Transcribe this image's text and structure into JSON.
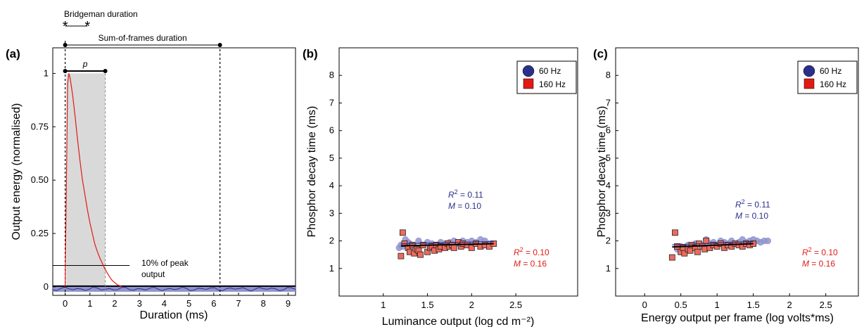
{
  "colors": {
    "blue": "#2b2f8c",
    "blue_fill": "#8f93cc",
    "red": "#e11b12",
    "red_fill": "#f06a5c",
    "shade": "#d9d9d9"
  },
  "chart_data": [
    {
      "panel": "(a)",
      "type": "line",
      "xlabel": "Duration (ms)",
      "ylabel": "Output energy (normalised)",
      "xlim": [
        -0.5,
        9.3
      ],
      "ylim": [
        -0.04,
        1.12
      ],
      "xticks": [
        "0",
        "1",
        "2",
        "3",
        "4",
        "5",
        "6",
        "7",
        "8",
        "9"
      ],
      "yticks": [
        "0",
        "0.25",
        "0.50",
        "0.75",
        "1"
      ],
      "series": [
        {
          "color": "red",
          "x": [
            0,
            0.05,
            0.1,
            0.15,
            0.2,
            0.3,
            0.4,
            0.5,
            0.6,
            0.7,
            0.8,
            0.9,
            1.0,
            1.1,
            1.2,
            1.3,
            1.4,
            1.5,
            1.6,
            1.7,
            1.8,
            1.9,
            2.0,
            2.1,
            2.2,
            2.3
          ],
          "y": [
            0,
            0.5,
            0.95,
            1.0,
            0.98,
            0.9,
            0.8,
            0.69,
            0.59,
            0.5,
            0.43,
            0.36,
            0.3,
            0.25,
            0.2,
            0.165,
            0.135,
            0.11,
            0.085,
            0.065,
            0.045,
            0.03,
            0.02,
            0.01,
            0.005,
            0
          ]
        }
      ],
      "shaded_region": [
        0.05,
        1.62
      ],
      "peak_10pct_level": 0.1,
      "annotations": {
        "bridgeman": {
          "label": "Bridgeman duration",
          "range": [
            0,
            0.9
          ]
        },
        "sum_of_frames": {
          "label": "Sum-of-frames duration",
          "range": [
            0,
            6.25
          ]
        },
        "p": {
          "label": "p",
          "range": [
            0,
            1.62
          ]
        },
        "peak_label_line1": "10% of peak",
        "peak_label_line2": "output"
      }
    },
    {
      "panel": "(b)",
      "type": "scatter",
      "xlabel": "Luminance output (log cd m⁻²)",
      "ylabel": "Phosphor decay time (ms)",
      "xlim": [
        0.5,
        3.2
      ],
      "ylim": [
        0,
        9
      ],
      "xticks": [
        "1",
        "1.5",
        "2",
        "2.5"
      ],
      "yticks": [
        "1",
        "2",
        "3",
        "4",
        "5",
        "6",
        "7",
        "8"
      ],
      "legend": [
        "60 Hz",
        "160 Hz"
      ],
      "legend_position": "top-right",
      "stats": {
        "blue": {
          "r2_label": "R",
          "r2_value": "2",
          "r2_rest": " = 0.11",
          "m_label": "M",
          "m_rest": " = 0.10"
        },
        "red": {
          "r2_label": "R",
          "r2_value": "2",
          "r2_rest": " = 0.10",
          "m_label": "M",
          "m_rest": " = 0.16"
        }
      },
      "series": [
        {
          "name": "60 Hz",
          "marker": "circle",
          "x": [
            1.18,
            1.2,
            1.22,
            1.25,
            1.28,
            1.3,
            1.35,
            1.4,
            1.45,
            1.5,
            1.55,
            1.6,
            1.65,
            1.7,
            1.75,
            1.8,
            1.85,
            1.9,
            1.95,
            2.0,
            2.05,
            2.1,
            2.15,
            2.2
          ],
          "y": [
            1.75,
            1.85,
            1.8,
            2.05,
            1.95,
            1.9,
            1.8,
            2.0,
            1.85,
            1.95,
            1.9,
            1.85,
            1.95,
            1.9,
            1.95,
            2.0,
            1.9,
            2.0,
            1.95,
            2.0,
            1.95,
            2.05,
            2.0,
            1.9
          ]
        },
        {
          "name": "160 Hz",
          "marker": "square",
          "x": [
            1.2,
            1.22,
            1.24,
            1.28,
            1.3,
            1.33,
            1.35,
            1.38,
            1.4,
            1.42,
            1.45,
            1.5,
            1.53,
            1.55,
            1.58,
            1.6,
            1.63,
            1.65,
            1.7,
            1.73,
            1.75,
            1.78,
            1.8,
            1.85,
            1.88,
            1.9,
            1.95,
            2.0,
            2.05,
            2.1,
            2.15,
            2.2,
            2.25
          ],
          "y": [
            1.45,
            2.3,
            1.9,
            1.75,
            1.6,
            1.85,
            1.55,
            1.7,
            1.65,
            1.5,
            1.85,
            1.6,
            1.75,
            1.8,
            1.65,
            1.85,
            1.7,
            1.8,
            1.75,
            1.9,
            1.8,
            1.85,
            1.75,
            1.95,
            1.8,
            1.9,
            1.85,
            1.75,
            1.9,
            1.8,
            1.85,
            1.8,
            1.9
          ]
        }
      ],
      "fit_line": {
        "x": [
          1.2,
          2.25
        ],
        "y": [
          1.82,
          1.9
        ]
      }
    },
    {
      "panel": "(c)",
      "type": "scatter",
      "xlabel": "Energy output per frame (log volts*ms)",
      "ylabel": "Phosphor decay time (ms)",
      "xlim": [
        -0.4,
        2.95
      ],
      "ylim": [
        0,
        9
      ],
      "xticks": [
        "0",
        "0.5",
        "1",
        "1.5",
        "2",
        "2.5"
      ],
      "yticks": [
        "1",
        "2",
        "3",
        "4",
        "5",
        "6",
        "7",
        "8"
      ],
      "legend": [
        "60 Hz",
        "160 Hz"
      ],
      "legend_position": "top-right",
      "stats": {
        "blue": {
          "r2_label": "R",
          "r2_value": "2",
          "r2_rest": " = 0.11",
          "m_label": "M",
          "m_rest": " = 0.10"
        },
        "red": {
          "r2_label": "R",
          "r2_value": "2",
          "r2_rest": " = 0.10",
          "m_label": "M",
          "m_rest": " = 0.16"
        }
      },
      "series": [
        {
          "name": "60 Hz",
          "marker": "circle",
          "x": [
            0.45,
            0.5,
            0.55,
            0.6,
            0.65,
            0.7,
            0.8,
            0.85,
            0.9,
            0.95,
            1.0,
            1.05,
            1.1,
            1.15,
            1.2,
            1.3,
            1.35,
            1.4,
            1.45,
            1.5,
            1.55,
            1.6,
            1.65,
            1.7
          ],
          "y": [
            1.7,
            1.8,
            1.75,
            1.85,
            1.8,
            1.9,
            1.85,
            2.05,
            1.9,
            1.95,
            1.85,
            2.0,
            1.95,
            1.9,
            2.0,
            1.95,
            2.05,
            1.95,
            2.0,
            2.05,
            2.0,
            1.95,
            2.0,
            2.0
          ]
        },
        {
          "name": "160 Hz",
          "marker": "square",
          "x": [
            0.38,
            0.42,
            0.45,
            0.5,
            0.53,
            0.55,
            0.6,
            0.63,
            0.65,
            0.7,
            0.73,
            0.75,
            0.8,
            0.83,
            0.85,
            0.9,
            0.95,
            1.0,
            1.05,
            1.1,
            1.15,
            1.2,
            1.25,
            1.3,
            1.35,
            1.4,
            1.45,
            1.5
          ],
          "y": [
            1.4,
            2.3,
            1.8,
            1.6,
            1.75,
            1.55,
            1.7,
            1.65,
            1.85,
            1.75,
            1.6,
            1.9,
            1.8,
            1.7,
            2.0,
            1.75,
            1.85,
            1.8,
            1.9,
            1.75,
            1.85,
            1.8,
            1.9,
            1.85,
            1.8,
            1.9,
            1.85,
            1.9
          ]
        }
      ],
      "fit_line": {
        "x": [
          0.38,
          1.5
        ],
        "y": [
          1.78,
          1.9
        ]
      }
    }
  ]
}
